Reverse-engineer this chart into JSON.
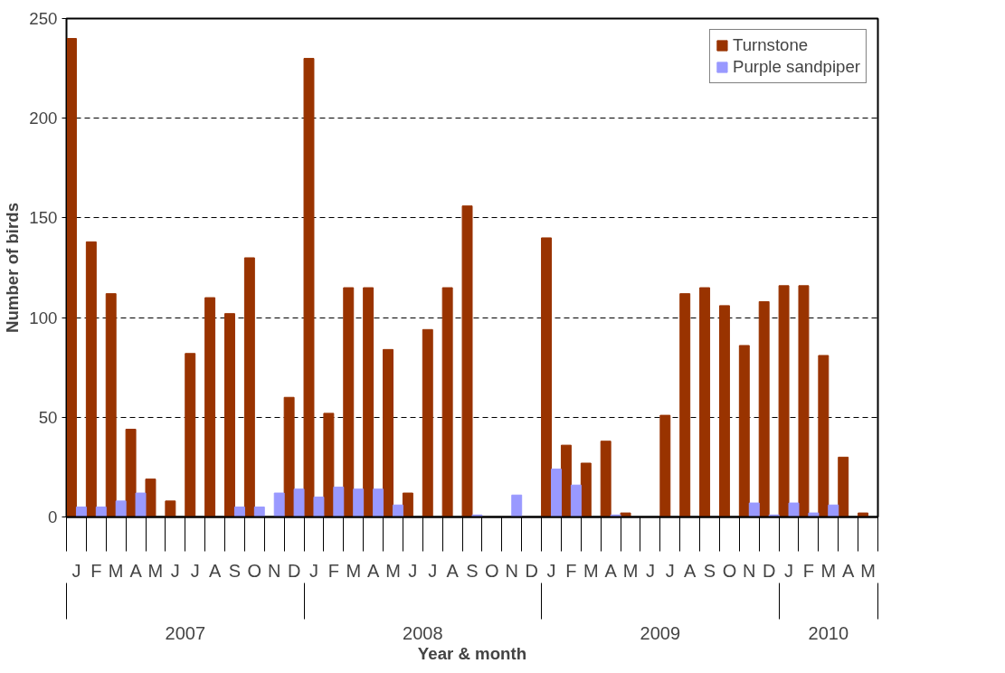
{
  "chart_data": {
    "type": "bar",
    "xlabel": "Year & month",
    "ylabel": "Number of birds",
    "categories": [
      "J",
      "F",
      "M",
      "A",
      "M",
      "J",
      "J",
      "A",
      "S",
      "O",
      "N",
      "D",
      "J",
      "F",
      "M",
      "A",
      "M",
      "J",
      "J",
      "A",
      "S",
      "O",
      "N",
      "D",
      "J",
      "F",
      "M",
      "A",
      "M",
      "J",
      "J",
      "A",
      "S",
      "O",
      "N",
      "D",
      "J",
      "F",
      "M",
      "A",
      "M"
    ],
    "series": [
      {
        "name": "Turnstone",
        "color": "#993300",
        "values": [
          240,
          138,
          112,
          44,
          19,
          8,
          82,
          110,
          102,
          130,
          0,
          60,
          230,
          52,
          115,
          115,
          84,
          12,
          94,
          115,
          156,
          0,
          0,
          0,
          140,
          36,
          27,
          38,
          2,
          0,
          51,
          112,
          115,
          106,
          86,
          108,
          116,
          116,
          81,
          30,
          2
        ]
      },
      {
        "name": "Purple sandpiper",
        "color": "#9999ff",
        "values": [
          5,
          5,
          8,
          12,
          0,
          0,
          0,
          0,
          5,
          5,
          12,
          14,
          10,
          15,
          14,
          14,
          6,
          0,
          0,
          0,
          1,
          0,
          11,
          0,
          24,
          16,
          0,
          1,
          0,
          0,
          0,
          0,
          0,
          0,
          7,
          1,
          7,
          2,
          6,
          0,
          0
        ]
      }
    ],
    "annotations": [
      "2007",
      "2008",
      "2009",
      "2010"
    ],
    "ylim": [
      0,
      250
    ],
    "yticks": [
      0,
      50,
      100,
      150,
      200,
      250
    ],
    "grid": "y",
    "legend": "top right"
  }
}
